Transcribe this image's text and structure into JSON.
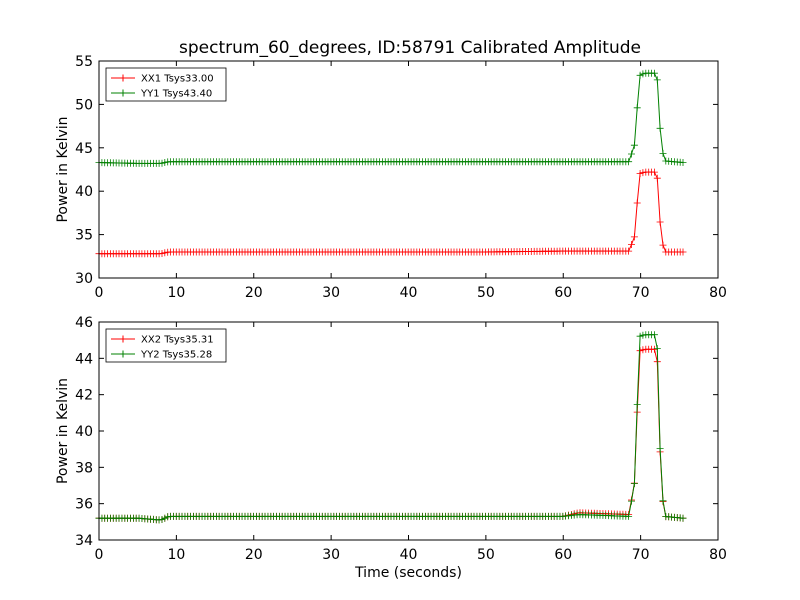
{
  "chart_data": [
    {
      "type": "line",
      "title": "spectrum_60_degrees, ID:58791 Calibrated Amplitude",
      "xlabel": "",
      "ylabel": "Power in Kelvin",
      "xlim": [
        0,
        80
      ],
      "ylim": [
        30,
        55
      ],
      "x_ticks": [
        "0",
        "10",
        "20",
        "30",
        "40",
        "50",
        "60",
        "70",
        "80"
      ],
      "y_ticks": [
        "30",
        "35",
        "40",
        "45",
        "50",
        "55"
      ],
      "grid": false,
      "legend_position": "top-left",
      "marker": "plus",
      "series": [
        {
          "name": "XX1 Tsys33.00",
          "color": "#ff0000",
          "x": [
            0,
            5,
            8,
            9,
            20,
            30,
            40,
            50,
            60,
            68.5,
            69.3,
            69.8,
            70.5,
            71.5,
            72.1,
            72.5,
            73,
            75.5
          ],
          "values": [
            32.8,
            32.8,
            32.8,
            33.0,
            33.0,
            33.0,
            33.0,
            33.0,
            33.1,
            33.1,
            35.0,
            42.0,
            42.2,
            42.2,
            42.2,
            36.6,
            33.0,
            33.0
          ]
        },
        {
          "name": "YY1 Tsys43.40",
          "color": "#008000",
          "x": [
            0,
            5,
            8,
            9,
            20,
            30,
            40,
            50,
            60,
            68.5,
            69.3,
            69.8,
            70.5,
            71.5,
            72.1,
            72.5,
            73,
            75.5
          ],
          "values": [
            43.3,
            43.2,
            43.2,
            43.4,
            43.4,
            43.4,
            43.4,
            43.4,
            43.4,
            43.4,
            45.6,
            53.3,
            53.6,
            53.6,
            53.6,
            47.4,
            43.5,
            43.3
          ]
        }
      ]
    },
    {
      "type": "line",
      "title": "",
      "xlabel": "Time (seconds)",
      "ylabel": "Power in Kelvin",
      "xlim": [
        0,
        80
      ],
      "ylim": [
        34,
        46
      ],
      "x_ticks": [
        "0",
        "10",
        "20",
        "30",
        "40",
        "50",
        "60",
        "70",
        "80"
      ],
      "y_ticks": [
        "34",
        "36",
        "38",
        "40",
        "42",
        "44",
        "46"
      ],
      "grid": false,
      "legend_position": "top-left",
      "marker": "plus",
      "series": [
        {
          "name": "XX2 Tsys35.31",
          "color": "#ff0000",
          "x": [
            0,
            5,
            8,
            9,
            20,
            30,
            40,
            50,
            60,
            62,
            68.5,
            69.3,
            69.8,
            70.5,
            71.5,
            72.1,
            72.5,
            73,
            75.5
          ],
          "values": [
            35.2,
            35.2,
            35.1,
            35.3,
            35.3,
            35.3,
            35.3,
            35.3,
            35.3,
            35.5,
            35.4,
            37.4,
            44.4,
            44.5,
            44.5,
            44.5,
            39.0,
            35.3,
            35.2
          ]
        },
        {
          "name": "YY2 Tsys35.28",
          "color": "#008000",
          "x": [
            0,
            5,
            8,
            9,
            20,
            30,
            40,
            50,
            60,
            62,
            68.5,
            69.3,
            69.8,
            70.5,
            71.5,
            72.1,
            72.5,
            73,
            75.5
          ],
          "values": [
            35.2,
            35.2,
            35.1,
            35.3,
            35.3,
            35.3,
            35.3,
            35.3,
            35.3,
            35.4,
            35.3,
            37.4,
            45.2,
            45.3,
            45.3,
            45.3,
            39.2,
            35.3,
            35.2
          ]
        }
      ]
    }
  ]
}
